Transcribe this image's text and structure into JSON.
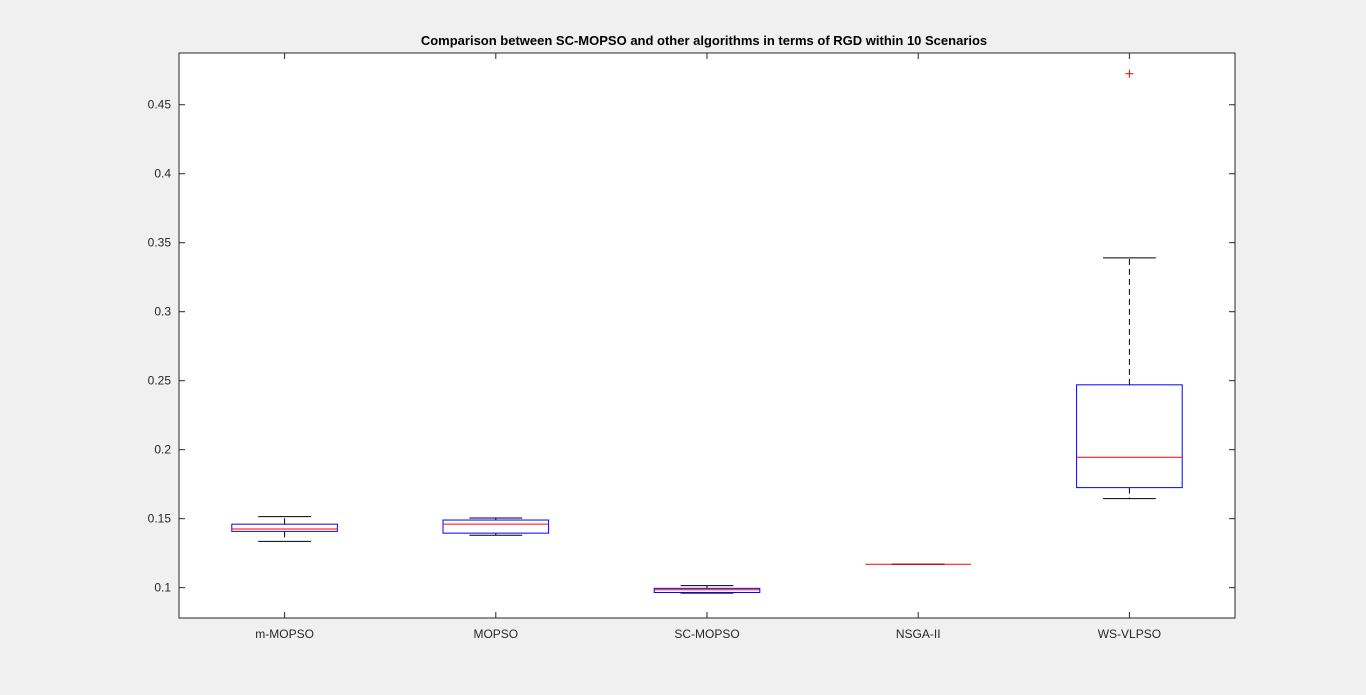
{
  "chart_data": {
    "type": "boxplot",
    "title": "Comparison between SC-MOPSO and other algorithms in terms of RGD within 10 Scenarios",
    "xlabel": "",
    "ylabel": "",
    "ylim": [
      0.078,
      0.4875
    ],
    "yticks": [
      0.1,
      0.15,
      0.2,
      0.25,
      0.3,
      0.35,
      0.4,
      0.45
    ],
    "ytick_labels": [
      "0.1",
      "0.15",
      "0.2",
      "0.25",
      "0.3",
      "0.35",
      "0.4",
      "0.45"
    ],
    "grid": false,
    "categories": [
      "m-MOPSO",
      "MOPSO",
      "SC-MOPSO",
      "NSGA-II",
      "WS-VLPSO"
    ],
    "boxes": [
      {
        "category": "m-MOPSO",
        "whisker_low": 0.1335,
        "q1": 0.1408,
        "median": 0.1425,
        "q3": 0.146,
        "whisker_high": 0.1515,
        "outliers": []
      },
      {
        "category": "MOPSO",
        "whisker_low": 0.138,
        "q1": 0.1395,
        "median": 0.146,
        "q3": 0.149,
        "whisker_high": 0.1505,
        "outliers": []
      },
      {
        "category": "SC-MOPSO",
        "whisker_low": 0.096,
        "q1": 0.0965,
        "median": 0.0985,
        "q3": 0.0995,
        "whisker_high": 0.1015,
        "outliers": []
      },
      {
        "category": "NSGA-II",
        "whisker_low": 0.117,
        "q1": 0.117,
        "median": 0.117,
        "q3": 0.117,
        "whisker_high": 0.117,
        "outliers": []
      },
      {
        "category": "WS-VLPSO",
        "whisker_low": 0.1645,
        "q1": 0.1725,
        "median": 0.1945,
        "q3": 0.247,
        "whisker_high": 0.339,
        "outliers": [
          0.4725
        ]
      }
    ],
    "colors": {
      "box": "#0000ff",
      "median": "#ff0000",
      "whisker": "#000000",
      "outlier": "#ff0000",
      "axes": "#262626",
      "background": "#ffffff",
      "figure": "#f0f0f0"
    }
  }
}
